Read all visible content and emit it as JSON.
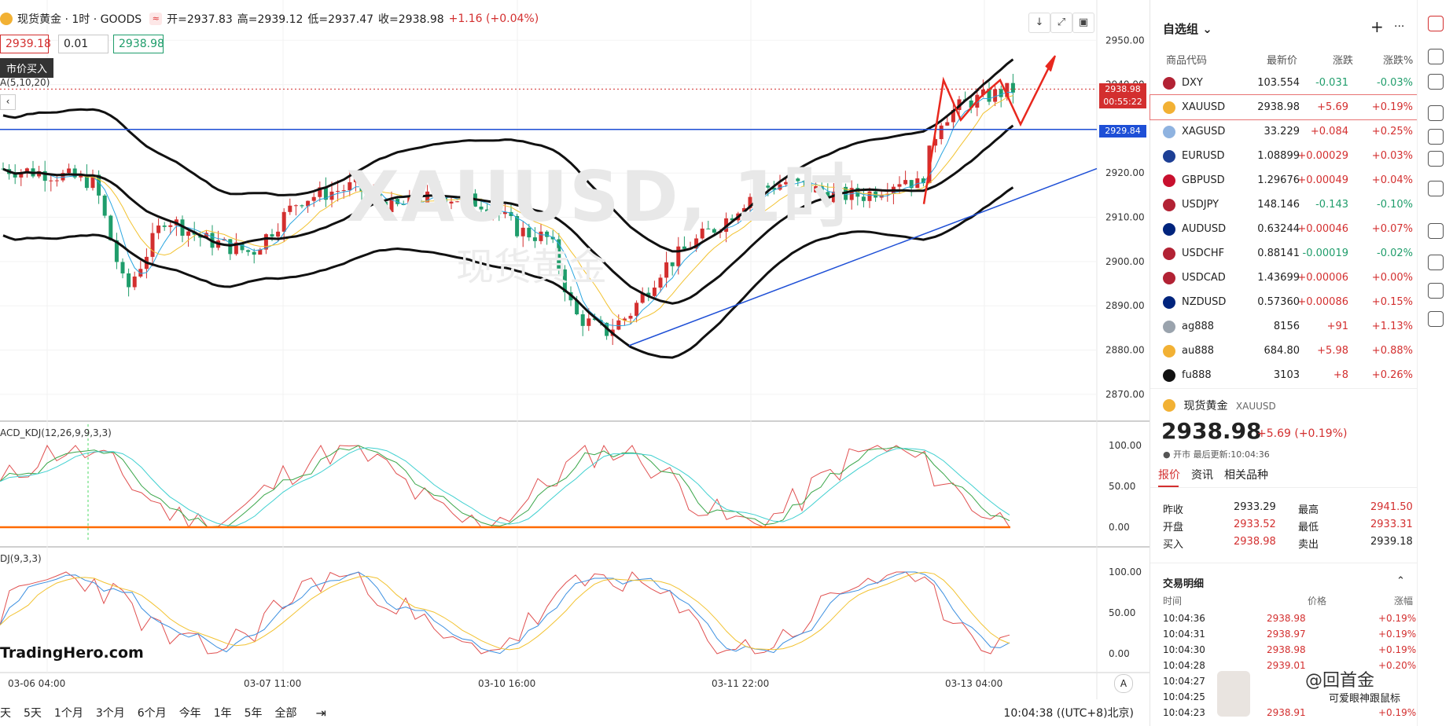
{
  "header": {
    "symbol_name": "现货黄金 · 1时 · GOODS",
    "badge": "≈",
    "open": "开=2937.83",
    "high": "高=2939.12",
    "low": "低=2937.47",
    "close": "收=2938.98",
    "change": "+1.16 (+0.04%)"
  },
  "order": {
    "sell": "2939.18",
    "qty": "0.01",
    "buy": "2938.98",
    "tooltip": "市价买入"
  },
  "indicators": {
    "ma": "A(5,10,20)",
    "macd_kdj": "ACD_KDJ(12,26,9,9,3,3)",
    "kdj": "DJ(9,3,3)"
  },
  "toolbar": {
    "download": "↓",
    "expand": "⤢",
    "fullscreen": "▣"
  },
  "watermark": {
    "main": "XAUUSD, 1时",
    "sub": "现货黄金"
  },
  "brand": "TradingHero.com",
  "price_tags": {
    "last": "2938.98",
    "countdown": "00:55:22",
    "level": "2929.84"
  },
  "price_axis": [
    "2950.00",
    "2940.00",
    "2930.00",
    "2920.00",
    "2910.00",
    "2900.00",
    "2890.00",
    "2880.00",
    "2870.00"
  ],
  "macd_axis": [
    "100.00",
    "50.00",
    "0.00"
  ],
  "kdj_axis": [
    "100.00",
    "50.00",
    "0.00"
  ],
  "time_axis": [
    "03-06 04:00",
    "03-07 11:00",
    "03-10 16:00",
    "03-11 22:00",
    "03-13 04:00"
  ],
  "auto_btn": "A",
  "periods": [
    "天",
    "5天",
    "1个月",
    "3个月",
    "6个月",
    "今年",
    "1年",
    "5年",
    "全部"
  ],
  "clock": "10:04:38 ((UTC+8)北京)",
  "watchlist": {
    "title": "自选组",
    "plus": "+",
    "more": "···",
    "cols": [
      "商品代码",
      "最新价",
      "涨跌",
      "涨跌%"
    ],
    "items": [
      {
        "code": "DXY",
        "price": "103.554",
        "chg": "-0.031",
        "pct": "-0.03%",
        "dir": "down",
        "color": "#b22234"
      },
      {
        "code": "XAUUSD",
        "price": "2938.98",
        "chg": "+5.69",
        "pct": "+0.19%",
        "dir": "up",
        "color": "#f2b134"
      },
      {
        "code": "XAGUSD",
        "price": "33.229",
        "chg": "+0.084",
        "pct": "+0.25%",
        "dir": "up",
        "color": "#8fb3e0"
      },
      {
        "code": "EURUSD",
        "price": "1.08899",
        "chg": "+0.00029",
        "pct": "+0.03%",
        "dir": "up",
        "color": "#1d3f95"
      },
      {
        "code": "GBPUSD",
        "price": "1.29676",
        "chg": "+0.00049",
        "pct": "+0.04%",
        "dir": "up",
        "color": "#c8102e"
      },
      {
        "code": "USDJPY",
        "price": "148.146",
        "chg": "-0.143",
        "pct": "-0.10%",
        "dir": "down",
        "color": "#b22234"
      },
      {
        "code": "AUDUSD",
        "price": "0.63244",
        "chg": "+0.00046",
        "pct": "+0.07%",
        "dir": "up",
        "color": "#00247d"
      },
      {
        "code": "USDCHF",
        "price": "0.88141",
        "chg": "-0.00019",
        "pct": "-0.02%",
        "dir": "down",
        "color": "#b22234"
      },
      {
        "code": "USDCAD",
        "price": "1.43699",
        "chg": "+0.00006",
        "pct": "+0.00%",
        "dir": "up",
        "color": "#b22234"
      },
      {
        "code": "NZDUSD",
        "price": "0.57360",
        "chg": "+0.00086",
        "pct": "+0.15%",
        "dir": "up",
        "color": "#00247d"
      },
      {
        "code": "ag888",
        "price": "8156",
        "chg": "+91",
        "pct": "+1.13%",
        "dir": "up",
        "color": "#9aa3ad"
      },
      {
        "code": "au888",
        "price": "684.80",
        "chg": "+5.98",
        "pct": "+0.88%",
        "dir": "up",
        "color": "#f2b134"
      },
      {
        "code": "fu888",
        "price": "3103",
        "chg": "+8",
        "pct": "+0.26%",
        "dir": "up",
        "color": "#111111"
      }
    ]
  },
  "detail": {
    "name": "现货黄金",
    "code": "XAUUSD",
    "price": "2938.98",
    "change": "+5.69 (+0.19%)",
    "status": "● 开市  最后更新:10:04:36",
    "tabs": [
      "报价",
      "资讯",
      "相关品种"
    ],
    "quotes": [
      {
        "l": "昨收",
        "v": "2933.29",
        "l2": "最高",
        "v2": "2941.50"
      },
      {
        "l": "开盘",
        "v": "2933.52",
        "l2": "最低",
        "v2": "2933.31"
      },
      {
        "l": "买入",
        "v": "2938.98",
        "l2": "卖出",
        "v2": "2939.18"
      }
    ]
  },
  "trades": {
    "title": "交易明细",
    "cols": [
      "时间",
      "价格",
      "涨幅"
    ],
    "rows": [
      {
        "t": "10:04:36",
        "p": "2938.98",
        "c": "+0.19%"
      },
      {
        "t": "10:04:31",
        "p": "2938.97",
        "c": "+0.19%"
      },
      {
        "t": "10:04:30",
        "p": "2938.98",
        "c": "+0.19%"
      },
      {
        "t": "10:04:28",
        "p": "2939.01",
        "c": "+0.20%"
      },
      {
        "t": "10:04:27",
        "p": "",
        "c": ""
      },
      {
        "t": "10:04:25",
        "p": "",
        "c": ""
      },
      {
        "t": "10:04:23",
        "p": "2938.91",
        "c": "+0.19%"
      }
    ]
  },
  "overlay": {
    "watermark": "@回首金",
    "caption": "可爱眼神跟鼠标"
  },
  "colors": {
    "up": "#d32f2f",
    "down": "#1f9d6b",
    "price_tag": "#d32f2f",
    "level_tag": "#1e4fd6"
  },
  "chart_data": {
    "type": "line",
    "title": "",
    "ylim": [
      2865,
      2952
    ],
    "price_levels": {
      "last": 2938.98,
      "horizontal": 2929.84
    },
    "time_labels": [
      "03-06 04:00",
      "03-07 11:00",
      "03-10 16:00",
      "03-11 22:00",
      "03-13 04:00"
    ]
  }
}
